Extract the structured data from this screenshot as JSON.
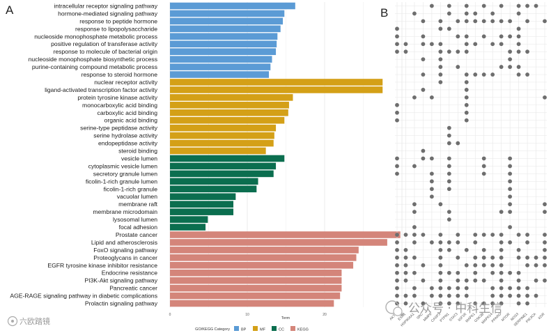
{
  "panel_labels": {
    "a": "A",
    "b": "B"
  },
  "colors": {
    "BP": "#5b9bd5",
    "MF": "#d4a017",
    "CC": "#0b6e4f",
    "KEGG": "#d4857a",
    "dot": "#6e6e6e",
    "grid": "#e6e6e6"
  },
  "chart_data": [
    {
      "type": "bar",
      "orientation": "horizontal",
      "title": "",
      "xlabel": "Term",
      "ylabel": "",
      "xlim": [
        0,
        30
      ],
      "xticks": [
        "0",
        "10",
        "20",
        "30"
      ],
      "grid": true,
      "legend_title": "GO/KEGG Category",
      "legend_position": "bottom",
      "legend": [
        {
          "key": "BP",
          "label": "BP"
        },
        {
          "key": "MF",
          "label": "MF"
        },
        {
          "key": "CC",
          "label": "CC"
        },
        {
          "key": "KEGG",
          "label": "KEGG"
        }
      ],
      "bars": [
        {
          "term": "intracellular receptor signaling pathway",
          "value": 16.2,
          "category": "BP"
        },
        {
          "term": "hormone-mediated signaling pathway",
          "value": 14.8,
          "category": "BP"
        },
        {
          "term": "response to peptide hormone",
          "value": 14.6,
          "category": "BP"
        },
        {
          "term": "response to lipopolysaccharide",
          "value": 14.3,
          "category": "BP"
        },
        {
          "term": "nucleoside monophosphate metabolic process",
          "value": 13.9,
          "category": "BP"
        },
        {
          "term": "positive regulation of transferase activity",
          "value": 13.8,
          "category": "BP"
        },
        {
          "term": "response to molecule of bacterial origin",
          "value": 13.7,
          "category": "BP"
        },
        {
          "term": "nucleoside monophosphate biosynthetic process",
          "value": 13.2,
          "category": "BP"
        },
        {
          "term": "purine-containing compound metabolic process",
          "value": 13.0,
          "category": "BP"
        },
        {
          "term": "response to steroid hormone",
          "value": 12.8,
          "category": "BP"
        },
        {
          "term": "nuclear receptor activity",
          "value": 27.5,
          "category": "MF"
        },
        {
          "term": "ligand-activated transcription factor activity",
          "value": 27.5,
          "category": "MF"
        },
        {
          "term": "protein tyrosine kinase activity",
          "value": 15.9,
          "category": "MF"
        },
        {
          "term": "monocarboxylic acid binding",
          "value": 15.4,
          "category": "MF"
        },
        {
          "term": "carboxylic acid binding",
          "value": 15.3,
          "category": "MF"
        },
        {
          "term": "organic acid binding",
          "value": 14.8,
          "category": "MF"
        },
        {
          "term": "serine-type peptidase activity",
          "value": 13.7,
          "category": "MF"
        },
        {
          "term": "serine hydrolase activity",
          "value": 13.5,
          "category": "MF"
        },
        {
          "term": "endopeptidase activity",
          "value": 13.4,
          "category": "MF"
        },
        {
          "term": "steroid binding",
          "value": 12.4,
          "category": "MF"
        },
        {
          "term": "vesicle lumen",
          "value": 14.8,
          "category": "CC"
        },
        {
          "term": "cytoplasmic vesicle lumen",
          "value": 13.7,
          "category": "CC"
        },
        {
          "term": "secretory granule lumen",
          "value": 13.4,
          "category": "CC"
        },
        {
          "term": "ficolin-1-rich granule lumen",
          "value": 11.4,
          "category": "CC"
        },
        {
          "term": "ficolin-1-rich granule",
          "value": 11.2,
          "category": "CC"
        },
        {
          "term": "vacuolar lumen",
          "value": 8.5,
          "category": "CC"
        },
        {
          "term": "membrane raft",
          "value": 8.2,
          "category": "CC"
        },
        {
          "term": "membrane microdomain",
          "value": 8.2,
          "category": "CC"
        },
        {
          "term": "lysosomal lumen",
          "value": 4.9,
          "category": "CC"
        },
        {
          "term": "focal adhesion",
          "value": 4.6,
          "category": "CC"
        },
        {
          "term": "Prostate cancer",
          "value": 29.8,
          "category": "KEGG"
        },
        {
          "term": "Lipid and atherosclerosis",
          "value": 28.1,
          "category": "KEGG"
        },
        {
          "term": "FoxO signaling pathway",
          "value": 24.4,
          "category": "KEGG"
        },
        {
          "term": "Proteoglycans in cancer",
          "value": 24.1,
          "category": "KEGG"
        },
        {
          "term": "EGFR tyrosine kinase inhibitor resistance",
          "value": 23.7,
          "category": "KEGG"
        },
        {
          "term": "Endocrine resistance",
          "value": 22.2,
          "category": "KEGG"
        },
        {
          "term": "PI3K-Akt signaling pathway",
          "value": 22.2,
          "category": "KEGG"
        },
        {
          "term": "Pancreatic cancer",
          "value": 22.2,
          "category": "KEGG"
        },
        {
          "term": "AGE-RAGE signaling pathway in diabetic complications",
          "value": 22.0,
          "category": "KEGG"
        },
        {
          "term": "Prolactin signaling pathway",
          "value": 21.2,
          "category": "KEGG"
        }
      ]
    },
    {
      "type": "scatter",
      "subtype": "gene-term membership matrix",
      "genes": [
        "AKT1",
        "ESR1",
        "HSP90AA1",
        "SRC",
        "MMP9",
        "CASP3",
        "PTPN1",
        "STAT3",
        "IGF1R",
        "MAPK1",
        "GSK3B",
        "MAPK14",
        "PPARG",
        "MTOR",
        "NOS3",
        "SERPINE1",
        "PIK3CA",
        "KDR"
      ],
      "rows": [
        [
          4,
          6,
          8,
          10,
          12,
          14,
          15,
          16
        ],
        [
          2,
          6,
          8,
          9,
          11,
          14
        ],
        [
          3,
          5,
          7,
          8,
          9,
          10,
          11,
          12,
          13,
          15,
          17
        ],
        [
          0,
          5,
          6,
          14
        ],
        [
          0,
          3,
          7,
          8,
          10,
          12,
          13,
          14
        ],
        [
          0,
          1,
          3,
          4,
          5,
          8,
          9,
          11,
          12,
          14
        ],
        [
          0,
          1,
          5,
          6,
          7,
          8,
          13,
          14,
          15
        ],
        [
          3,
          5,
          13
        ],
        [
          5,
          7,
          12,
          13,
          14
        ],
        [
          3,
          5,
          8,
          9,
          10,
          11,
          14,
          15
        ],
        [
          5,
          8
        ],
        [
          3,
          8
        ],
        [
          2,
          4,
          8,
          17
        ],
        [
          0,
          8
        ],
        [
          0,
          8
        ],
        [
          0,
          8
        ],
        [
          6
        ],
        [
          6
        ],
        [
          6,
          7
        ],
        [
          3
        ],
        [
          0,
          3,
          4,
          6,
          10,
          13
        ],
        [
          0,
          2,
          6,
          10,
          13
        ],
        [
          0,
          4,
          6,
          10,
          13
        ],
        [
          4,
          6,
          13
        ],
        [
          4,
          6,
          13
        ],
        [
          4,
          13
        ],
        [
          2,
          5,
          13,
          17
        ],
        [
          2,
          6,
          12,
          13,
          17
        ],
        [
          6
        ],
        [
          2,
          13
        ],
        [
          0,
          1,
          2,
          3,
          5,
          7,
          9,
          10,
          11,
          12,
          14,
          15,
          17
        ],
        [
          0,
          2,
          4,
          5,
          6,
          7,
          9,
          12,
          13,
          15,
          17
        ],
        [
          0,
          1,
          5,
          6,
          8,
          10,
          12,
          14,
          17
        ],
        [
          0,
          1,
          2,
          5,
          7,
          9,
          10,
          11,
          12,
          14,
          15,
          16,
          17
        ],
        [
          0,
          1,
          3,
          5,
          8,
          9,
          10,
          11,
          12,
          15,
          16,
          17
        ],
        [
          0,
          1,
          2,
          5,
          6,
          7,
          9,
          11,
          12,
          13,
          14
        ],
        [
          0,
          1,
          3,
          5,
          7,
          8,
          9,
          10,
          12,
          14,
          16,
          17
        ],
        [
          0,
          2,
          4,
          5,
          6,
          7,
          8,
          11,
          12,
          13,
          14,
          15
        ],
        [
          0,
          1,
          2,
          4,
          5,
          6,
          7,
          8,
          11,
          12,
          13,
          14,
          15,
          16
        ],
        [
          0,
          1,
          3,
          5,
          6,
          7,
          9,
          10,
          11,
          12,
          14,
          15
        ]
      ]
    }
  ],
  "watermarks": {
    "left": "六欧踏镜",
    "right": "公众号 · 中科生信"
  }
}
